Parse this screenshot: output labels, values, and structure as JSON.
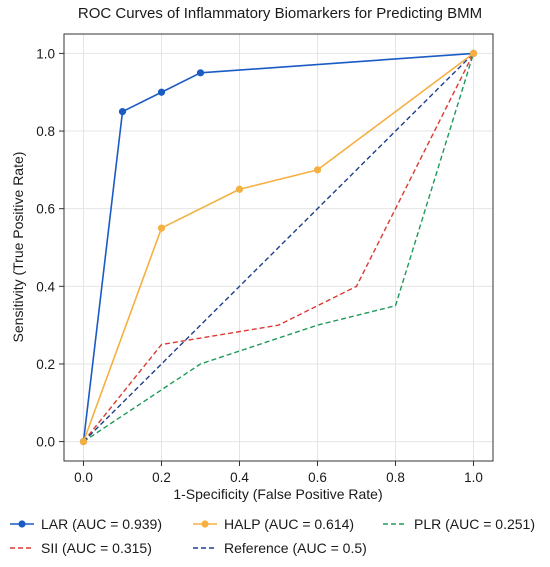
{
  "chart_data": {
    "type": "line",
    "title": "ROC Curves of Inflammatory Biomarkers for Predicting BMM",
    "xlabel": "1-Specificity (False Positive Rate)",
    "ylabel": "Sensitivity (True Positive Rate)",
    "xlim": [
      -0.05,
      1.05
    ],
    "ylim": [
      -0.05,
      1.05
    ],
    "xticks": [
      0.0,
      0.2,
      0.4,
      0.6,
      0.8,
      1.0
    ],
    "yticks": [
      0.0,
      0.2,
      0.4,
      0.6,
      0.8,
      1.0
    ],
    "tick_labels": [
      "0.0",
      "0.2",
      "0.4",
      "0.6",
      "0.8",
      "1.0"
    ],
    "grid": true,
    "legend_position": "bottom",
    "series": [
      {
        "name": "LAR (AUC = 0.939)",
        "color": "#1a5bc4",
        "style": "solid",
        "markers": true,
        "points": [
          [
            0,
            0
          ],
          [
            0.1,
            0.85
          ],
          [
            0.2,
            0.9
          ],
          [
            0.3,
            0.95
          ],
          [
            1.0,
            1.0
          ]
        ]
      },
      {
        "name": "HALP (AUC = 0.614)",
        "color": "#f5b041",
        "style": "solid",
        "markers": true,
        "points": [
          [
            0,
            0
          ],
          [
            0.2,
            0.55
          ],
          [
            0.4,
            0.65
          ],
          [
            0.6,
            0.7
          ],
          [
            1.0,
            1.0
          ]
        ]
      },
      {
        "name": "PLR (AUC = 0.251)",
        "color": "#1e9a5a",
        "style": "dashed",
        "markers": false,
        "points": [
          [
            0,
            0
          ],
          [
            0.3,
            0.2
          ],
          [
            0.6,
            0.3
          ],
          [
            0.8,
            0.35
          ],
          [
            1.0,
            1.0
          ]
        ]
      },
      {
        "name": "SII (AUC = 0.315)",
        "color": "#d93a32",
        "style": "dashed",
        "markers": false,
        "points": [
          [
            0,
            0
          ],
          [
            0.2,
            0.25
          ],
          [
            0.5,
            0.3
          ],
          [
            0.7,
            0.4
          ],
          [
            1.0,
            1.0
          ]
        ]
      },
      {
        "name": "Reference (AUC = 0.5)",
        "color": "#1c3f8a",
        "style": "dashed",
        "markers": false,
        "points": [
          [
            0,
            0
          ],
          [
            1.0,
            1.0
          ]
        ]
      }
    ]
  }
}
